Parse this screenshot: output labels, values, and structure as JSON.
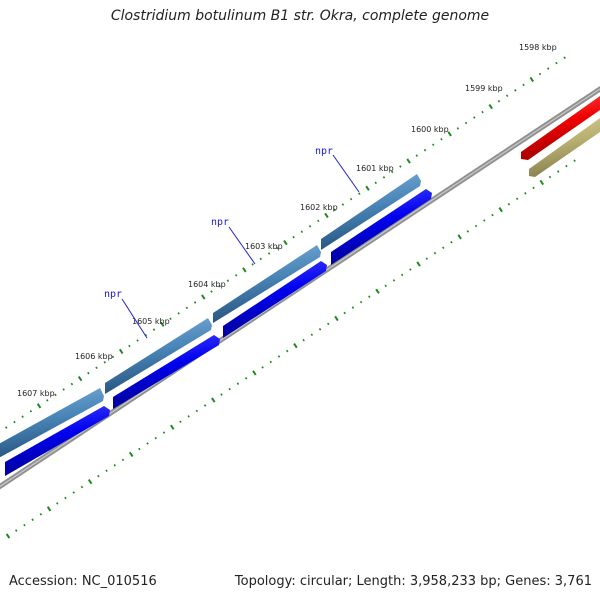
{
  "title": "Clostridium botulinum B1 str. Okra, complete genome",
  "footer": {
    "accession": "Accession: NC_010516",
    "summary": "Topology: circular; Length: 3,958,233 bp; Genes: 3,761"
  },
  "kbp_ticks": [
    "1598 kbp",
    "1599 kbp",
    "1600 kbp",
    "1601 kbp",
    "1602 kbp",
    "1603 kbp",
    "1604 kbp",
    "1605 kbp",
    "1606 kbp",
    "1607 kbp"
  ],
  "gene_labels": [
    "npr",
    "npr",
    "npr"
  ],
  "colors": {
    "backbone": "#808080",
    "tick_marks": "#1e8a1e",
    "outer_cds": "#4a86b8",
    "inner_cds": "#0000ee",
    "red_feature": "#ee0000",
    "olive_feature": "#b8b070",
    "label_leader": "#2020d0"
  }
}
